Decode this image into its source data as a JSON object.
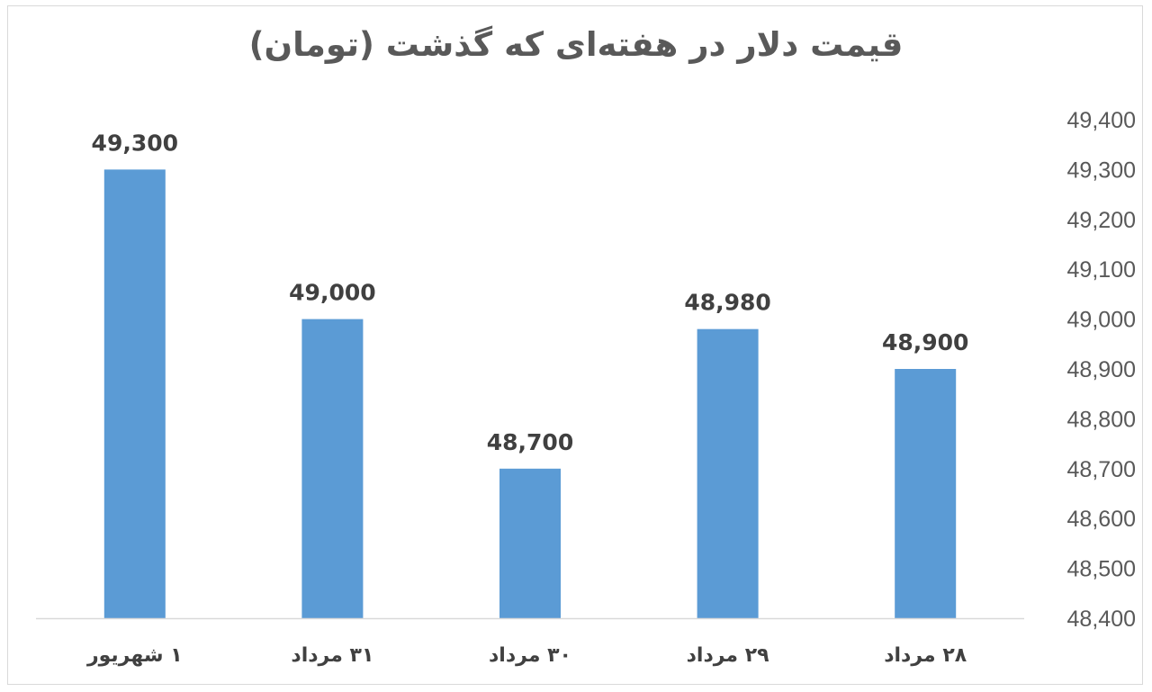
{
  "chart_data": {
    "type": "bar",
    "title": "قیمت  دلار در هفته‌ای که گذشت (تومان)",
    "categories": [
      "۱ شهریور",
      "۳۱ مرداد",
      "۳۰ مرداد",
      "۲۹ مرداد",
      "۲۸ مرداد"
    ],
    "values": [
      49300,
      49000,
      48700,
      48980,
      48900
    ],
    "value_labels": [
      "49,300",
      "49,000",
      "48,700",
      "48,980",
      "48,900"
    ],
    "y_ticks": [
      "48,400",
      "48,500",
      "48,600",
      "48,700",
      "48,800",
      "48,900",
      "49,000",
      "49,100",
      "49,200",
      "49,300",
      "49,400"
    ],
    "ylim": [
      48400,
      49400
    ],
    "y_step": 100,
    "y_axis_side": "right",
    "grid": false,
    "legend": "none",
    "bar_color": "#5b9bd5",
    "axis_color": "#d9d9d9"
  }
}
